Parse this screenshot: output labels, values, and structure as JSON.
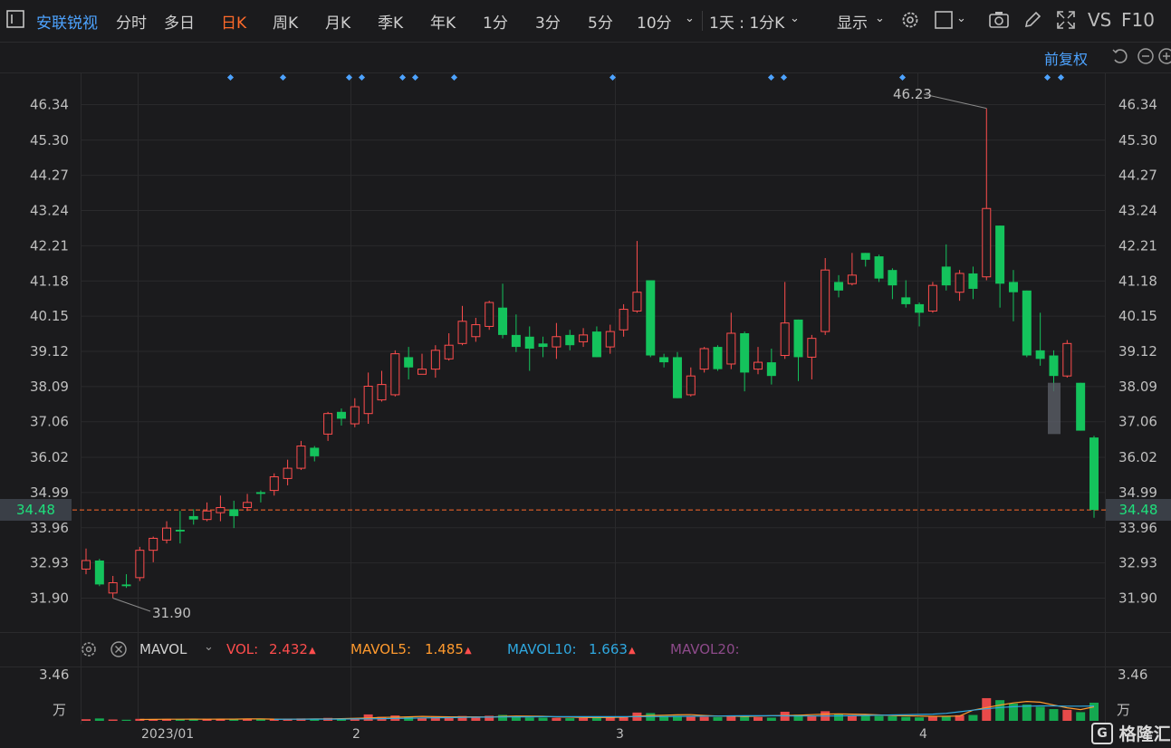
{
  "toolbar": {
    "stock_name": "安联锐视",
    "periods": [
      "分时",
      "多日",
      "日K",
      "周K",
      "月K",
      "季K",
      "年K",
      "1分",
      "3分",
      "5分",
      "10分"
    ],
    "active_period": "日K",
    "combo_label": "1天 : 1分K",
    "display_label": "显示",
    "vs_label": "VS",
    "f10_label": "F10"
  },
  "fq_label": "前复权",
  "price_axis": {
    "ticks": [
      "46.34",
      "45.30",
      "44.27",
      "43.24",
      "42.21",
      "41.18",
      "40.15",
      "39.12",
      "38.09",
      "37.06",
      "36.02",
      "34.99",
      "33.96",
      "32.93",
      "31.90"
    ],
    "current_price": "34.48",
    "high_label": "46.23",
    "low_label": "31.90"
  },
  "date_axis": [
    "2023/01",
    "2",
    "3",
    "4"
  ],
  "volume_panel": {
    "indicator_name": "MAVOL",
    "vol_label": "VOL:",
    "vol_value": "2.432",
    "mavol5_label": "MAVOL5:",
    "mavol5_value": "1.485",
    "mavol10_label": "MAVOL10:",
    "mavol10_value": "1.663",
    "mavol20_label": "MAVOL20:",
    "axis_top": "3.46",
    "axis_unit": "万"
  },
  "watermark": "格隆汇",
  "colors": {
    "up": "#ff4d4d",
    "down": "#14c35c",
    "accent": "#ff6a2a",
    "link": "#4da3ff",
    "mavol5": "#ff9a2e",
    "mavol10": "#2fa8e0",
    "mavol20": "#8d4a8a"
  },
  "chart_data": {
    "type": "candlestick",
    "price_range": [
      31.5,
      46.6
    ],
    "candles": [
      {
        "o": 32.75,
        "c": 33.0,
        "h": 33.35,
        "l": 32.6
      },
      {
        "o": 33.0,
        "c": 32.3,
        "h": 33.05,
        "l": 32.25
      },
      {
        "o": 32.05,
        "c": 32.35,
        "h": 32.55,
        "l": 31.9
      },
      {
        "o": 32.3,
        "c": 32.25,
        "h": 32.6,
        "l": 32.2
      },
      {
        "o": 32.5,
        "c": 33.3,
        "h": 33.4,
        "l": 32.4
      },
      {
        "o": 33.3,
        "c": 33.65,
        "h": 33.7,
        "l": 32.95
      },
      {
        "o": 33.6,
        "c": 33.95,
        "h": 34.15,
        "l": 33.5
      },
      {
        "o": 33.9,
        "c": 33.85,
        "h": 34.45,
        "l": 33.5
      },
      {
        "o": 34.3,
        "c": 34.2,
        "h": 34.5,
        "l": 34.05
      },
      {
        "o": 34.2,
        "c": 34.45,
        "h": 34.7,
        "l": 34.15
      },
      {
        "o": 34.4,
        "c": 34.55,
        "h": 34.9,
        "l": 34.15
      },
      {
        "o": 34.5,
        "c": 34.3,
        "h": 34.75,
        "l": 33.95
      },
      {
        "o": 34.55,
        "c": 34.7,
        "h": 34.95,
        "l": 34.45
      },
      {
        "o": 35.0,
        "c": 34.95,
        "h": 35.05,
        "l": 34.7
      },
      {
        "o": 35.05,
        "c": 35.45,
        "h": 35.55,
        "l": 34.9
      },
      {
        "o": 35.4,
        "c": 35.7,
        "h": 35.95,
        "l": 35.2
      },
      {
        "o": 35.7,
        "c": 36.35,
        "h": 36.5,
        "l": 35.65
      },
      {
        "o": 36.3,
        "c": 36.05,
        "h": 36.35,
        "l": 35.9
      },
      {
        "o": 36.7,
        "c": 37.3,
        "h": 37.35,
        "l": 36.5
      },
      {
        "o": 37.35,
        "c": 37.15,
        "h": 37.45,
        "l": 36.95
      },
      {
        "o": 37.0,
        "c": 37.5,
        "h": 37.75,
        "l": 36.9
      },
      {
        "o": 37.3,
        "c": 38.1,
        "h": 38.5,
        "l": 37.0
      },
      {
        "o": 37.7,
        "c": 38.15,
        "h": 38.55,
        "l": 37.65
      },
      {
        "o": 37.85,
        "c": 39.05,
        "h": 39.15,
        "l": 37.8
      },
      {
        "o": 38.95,
        "c": 38.65,
        "h": 39.25,
        "l": 38.3
      },
      {
        "o": 38.45,
        "c": 38.6,
        "h": 39.05,
        "l": 38.45
      },
      {
        "o": 38.6,
        "c": 39.15,
        "h": 39.3,
        "l": 38.35
      },
      {
        "o": 38.9,
        "c": 39.3,
        "h": 39.65,
        "l": 38.85
      },
      {
        "o": 39.35,
        "c": 40.0,
        "h": 40.45,
        "l": 39.3
      },
      {
        "o": 39.55,
        "c": 39.9,
        "h": 40.1,
        "l": 39.4
      },
      {
        "o": 39.85,
        "c": 40.55,
        "h": 40.6,
        "l": 39.75
      },
      {
        "o": 40.4,
        "c": 39.6,
        "h": 41.1,
        "l": 39.5
      },
      {
        "o": 39.6,
        "c": 39.25,
        "h": 40.2,
        "l": 39.1
      },
      {
        "o": 39.55,
        "c": 39.2,
        "h": 39.85,
        "l": 38.55
      },
      {
        "o": 39.35,
        "c": 39.25,
        "h": 39.55,
        "l": 38.95
      },
      {
        "o": 39.25,
        "c": 39.55,
        "h": 39.95,
        "l": 38.9
      },
      {
        "o": 39.6,
        "c": 39.3,
        "h": 39.75,
        "l": 39.15
      },
      {
        "o": 39.4,
        "c": 39.6,
        "h": 39.8,
        "l": 39.25
      },
      {
        "o": 39.7,
        "c": 38.95,
        "h": 39.85,
        "l": 38.95
      },
      {
        "o": 39.25,
        "c": 39.7,
        "h": 39.9,
        "l": 39.05
      },
      {
        "o": 39.75,
        "c": 40.35,
        "h": 40.5,
        "l": 39.55
      },
      {
        "o": 40.3,
        "c": 40.85,
        "h": 42.35,
        "l": 40.25
      },
      {
        "o": 41.2,
        "c": 39.0,
        "h": 41.2,
        "l": 38.95
      },
      {
        "o": 38.95,
        "c": 38.8,
        "h": 39.05,
        "l": 38.65
      },
      {
        "o": 38.95,
        "c": 37.75,
        "h": 39.1,
        "l": 37.75
      },
      {
        "o": 37.85,
        "c": 38.4,
        "h": 38.65,
        "l": 37.8
      },
      {
        "o": 38.6,
        "c": 39.2,
        "h": 39.25,
        "l": 38.5
      },
      {
        "o": 39.25,
        "c": 38.6,
        "h": 39.3,
        "l": 38.55
      },
      {
        "o": 38.75,
        "c": 39.65,
        "h": 40.25,
        "l": 38.6
      },
      {
        "o": 39.65,
        "c": 38.5,
        "h": 39.7,
        "l": 37.95
      },
      {
        "o": 38.6,
        "c": 38.8,
        "h": 39.25,
        "l": 38.45
      },
      {
        "o": 38.8,
        "c": 38.4,
        "h": 39.2,
        "l": 38.15
      },
      {
        "o": 39.0,
        "c": 39.95,
        "h": 41.15,
        "l": 38.9
      },
      {
        "o": 40.05,
        "c": 38.95,
        "h": 40.05,
        "l": 38.25
      },
      {
        "o": 38.95,
        "c": 39.5,
        "h": 39.6,
        "l": 38.3
      },
      {
        "o": 39.7,
        "c": 41.5,
        "h": 41.85,
        "l": 39.6
      },
      {
        "o": 41.15,
        "c": 40.9,
        "h": 41.35,
        "l": 40.7
      },
      {
        "o": 41.1,
        "c": 41.35,
        "h": 42.0,
        "l": 41.05
      },
      {
        "o": 42.0,
        "c": 41.8,
        "h": 42.0,
        "l": 41.6
      },
      {
        "o": 41.9,
        "c": 41.25,
        "h": 41.95,
        "l": 41.15
      },
      {
        "o": 41.5,
        "c": 41.05,
        "h": 41.55,
        "l": 40.65
      },
      {
        "o": 40.7,
        "c": 40.5,
        "h": 41.2,
        "l": 40.4
      },
      {
        "o": 40.5,
        "c": 40.25,
        "h": 40.55,
        "l": 39.85
      },
      {
        "o": 40.3,
        "c": 41.05,
        "h": 41.15,
        "l": 40.25
      },
      {
        "o": 41.6,
        "c": 41.05,
        "h": 42.25,
        "l": 40.9
      },
      {
        "o": 40.85,
        "c": 41.4,
        "h": 41.5,
        "l": 40.6
      },
      {
        "o": 41.4,
        "c": 40.95,
        "h": 41.6,
        "l": 40.65
      },
      {
        "o": 41.3,
        "c": 43.3,
        "h": 46.23,
        "l": 41.2
      },
      {
        "o": 42.8,
        "c": 41.1,
        "h": 42.8,
        "l": 40.4
      },
      {
        "o": 41.15,
        "c": 40.85,
        "h": 41.5,
        "l": 40.0
      },
      {
        "o": 40.9,
        "c": 39.0,
        "h": 40.9,
        "l": 38.95
      },
      {
        "o": 39.15,
        "c": 38.9,
        "h": 40.25,
        "l": 38.7
      },
      {
        "o": 39.0,
        "c": 38.4,
        "h": 39.15,
        "l": 37.95
      },
      {
        "o": 38.4,
        "c": 39.35,
        "h": 39.45,
        "l": 38.35
      },
      {
        "o": 38.2,
        "c": 36.8,
        "h": 38.2,
        "l": 36.8
      },
      {
        "o": 36.6,
        "c": 34.48,
        "h": 36.65,
        "l": 34.25
      }
    ],
    "volumes": [
      0.12,
      0.18,
      0.1,
      0.08,
      0.15,
      0.12,
      0.14,
      0.1,
      0.12,
      0.15,
      0.12,
      0.1,
      0.14,
      0.1,
      0.12,
      0.16,
      0.18,
      0.12,
      0.22,
      0.16,
      0.2,
      0.48,
      0.3,
      0.4,
      0.28,
      0.22,
      0.3,
      0.32,
      0.36,
      0.24,
      0.38,
      0.44,
      0.35,
      0.25,
      0.24,
      0.22,
      0.2,
      0.22,
      0.3,
      0.24,
      0.28,
      0.62,
      0.58,
      0.36,
      0.38,
      0.35,
      0.3,
      0.28,
      0.32,
      0.36,
      0.28,
      0.24,
      0.68,
      0.46,
      0.34,
      0.72,
      0.52,
      0.42,
      0.38,
      0.36,
      0.34,
      0.3,
      0.26,
      0.3,
      0.36,
      0.42,
      0.44,
      1.7,
      1.55,
      1.3,
      1.22,
      1.05,
      0.88,
      0.82,
      0.65,
      1.36
    ],
    "mavol5": [
      0.1,
      0.11,
      0.12,
      0.12,
      0.13,
      0.12,
      0.13,
      0.13,
      0.14,
      0.14,
      0.13,
      0.12,
      0.13,
      0.14,
      0.15,
      0.16,
      0.19,
      0.22,
      0.26,
      0.27,
      0.3,
      0.33,
      0.32,
      0.3,
      0.3,
      0.3,
      0.28,
      0.33,
      0.36,
      0.35,
      0.34,
      0.3,
      0.28,
      0.25,
      0.25,
      0.25,
      0.28,
      0.35,
      0.4,
      0.42,
      0.45,
      0.46,
      0.4,
      0.36,
      0.35,
      0.33,
      0.35,
      0.38,
      0.4,
      0.42,
      0.46,
      0.5,
      0.52,
      0.5,
      0.48,
      0.44,
      0.4,
      0.38,
      0.36,
      0.34,
      0.34,
      0.36,
      0.8,
      1.0,
      1.18,
      1.34,
      1.45,
      1.4,
      1.18,
      0.98,
      0.84,
      1.05
    ],
    "mavol10": [
      0.11,
      0.12,
      0.12,
      0.13,
      0.13,
      0.13,
      0.14,
      0.15,
      0.16,
      0.18,
      0.2,
      0.22,
      0.23,
      0.24,
      0.26,
      0.27,
      0.28,
      0.29,
      0.3,
      0.3,
      0.31,
      0.31,
      0.31,
      0.31,
      0.31,
      0.31,
      0.31,
      0.32,
      0.32,
      0.32,
      0.33,
      0.34,
      0.35,
      0.36,
      0.37,
      0.38,
      0.38,
      0.38,
      0.37,
      0.36,
      0.36,
      0.36,
      0.37,
      0.38,
      0.4,
      0.42,
      0.44,
      0.46,
      0.48,
      0.5,
      0.56,
      0.68,
      0.8,
      0.9,
      1.0,
      1.06,
      1.1,
      1.12,
      1.12,
      1.1,
      1.1,
      1.11
    ]
  }
}
